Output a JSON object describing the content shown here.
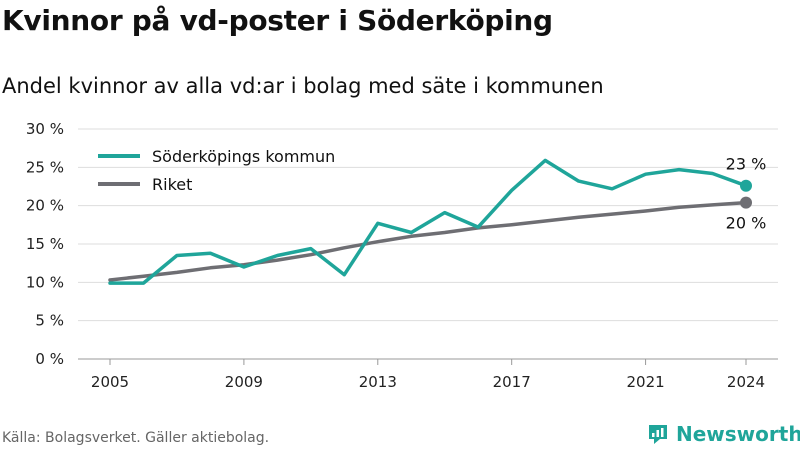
{
  "title": "Kvinnor på vd-poster i Söderköping",
  "subtitle": "Andel kvinnor av alla vd:ar i bolag med säte i kommunen",
  "source": "Källa: Bolagsverket. Gäller aktiebolag.",
  "brand": "Newsworthy",
  "colors": {
    "accent": "#1fa59a",
    "secondary": "#6e6e73",
    "brand": "#1fa59a"
  },
  "chart_data": {
    "type": "line",
    "x": [
      2005,
      2006,
      2007,
      2008,
      2009,
      2010,
      2011,
      2012,
      2013,
      2014,
      2015,
      2016,
      2017,
      2018,
      2019,
      2020,
      2021,
      2022,
      2023,
      2024
    ],
    "series": [
      {
        "name": "Söderköpings kommun",
        "color": "#1fa59a",
        "values": [
          9.9,
          9.9,
          13.5,
          13.8,
          12.0,
          13.5,
          14.4,
          11.0,
          17.7,
          16.5,
          19.1,
          17.2,
          22.0,
          25.9,
          23.2,
          22.2,
          24.1,
          24.7,
          24.2,
          22.6
        ],
        "end_label": "23 %"
      },
      {
        "name": "Riket",
        "color": "#6e6e73",
        "values": [
          10.3,
          10.8,
          11.3,
          11.9,
          12.3,
          12.9,
          13.6,
          14.5,
          15.3,
          16.0,
          16.5,
          17.1,
          17.5,
          18.0,
          18.5,
          18.9,
          19.3,
          19.8,
          20.1,
          20.4
        ],
        "end_label": "20 %"
      }
    ],
    "x_ticks": [
      2005,
      2009,
      2013,
      2017,
      2021,
      2024
    ],
    "y_ticks": [
      0,
      5,
      10,
      15,
      20,
      25,
      30
    ],
    "y_tick_labels": [
      "0 %",
      "5 %",
      "10 %",
      "15 %",
      "20 %",
      "25 %",
      "30 %"
    ],
    "ylim": [
      0,
      30
    ],
    "xlim": [
      2005,
      2024
    ],
    "grid": "horizontal",
    "legend_position": "top-left"
  }
}
